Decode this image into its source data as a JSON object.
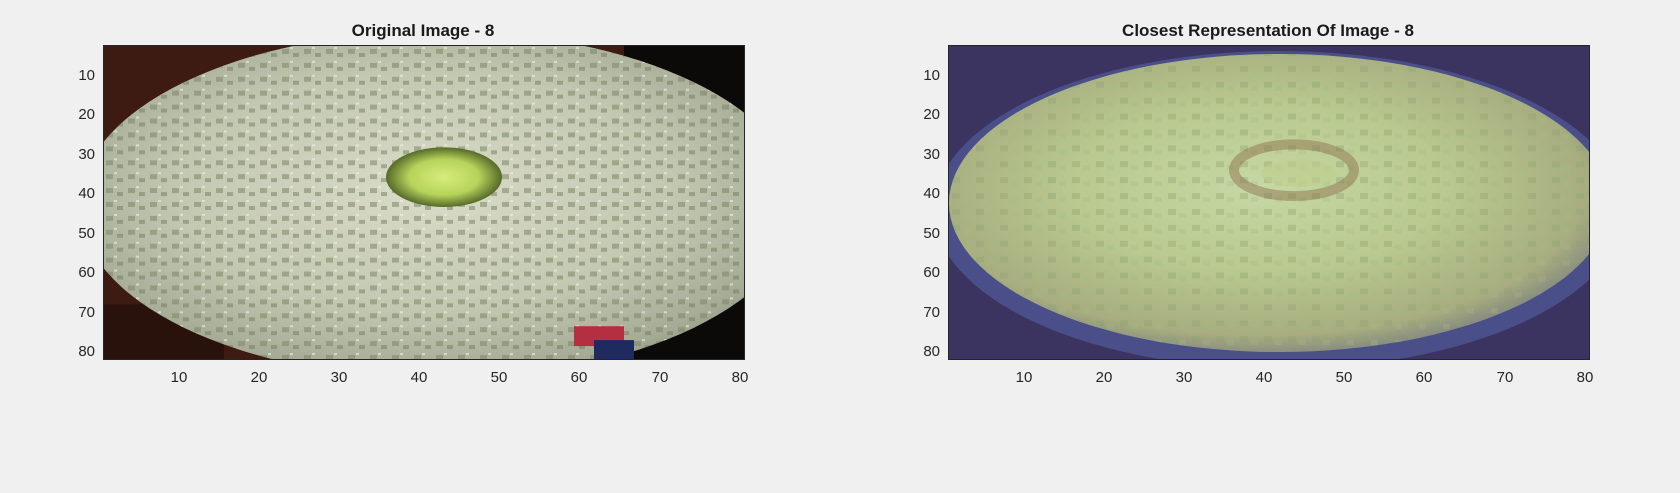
{
  "figure": {
    "panels": [
      {
        "id": "left",
        "title": "Original Image - 8",
        "yticks": [
          "10",
          "20",
          "30",
          "40",
          "50",
          "60",
          "70",
          "80"
        ],
        "xticks": [
          "10",
          "20",
          "30",
          "40",
          "50",
          "60",
          "70",
          "80"
        ]
      },
      {
        "id": "right",
        "title": "Closest Representation Of Image - 8",
        "yticks": [
          "10",
          "20",
          "30",
          "40",
          "50",
          "60",
          "70",
          "80"
        ],
        "xticks": [
          "10",
          "20",
          "30",
          "40",
          "50",
          "60",
          "70",
          "80"
        ]
      }
    ]
  }
}
